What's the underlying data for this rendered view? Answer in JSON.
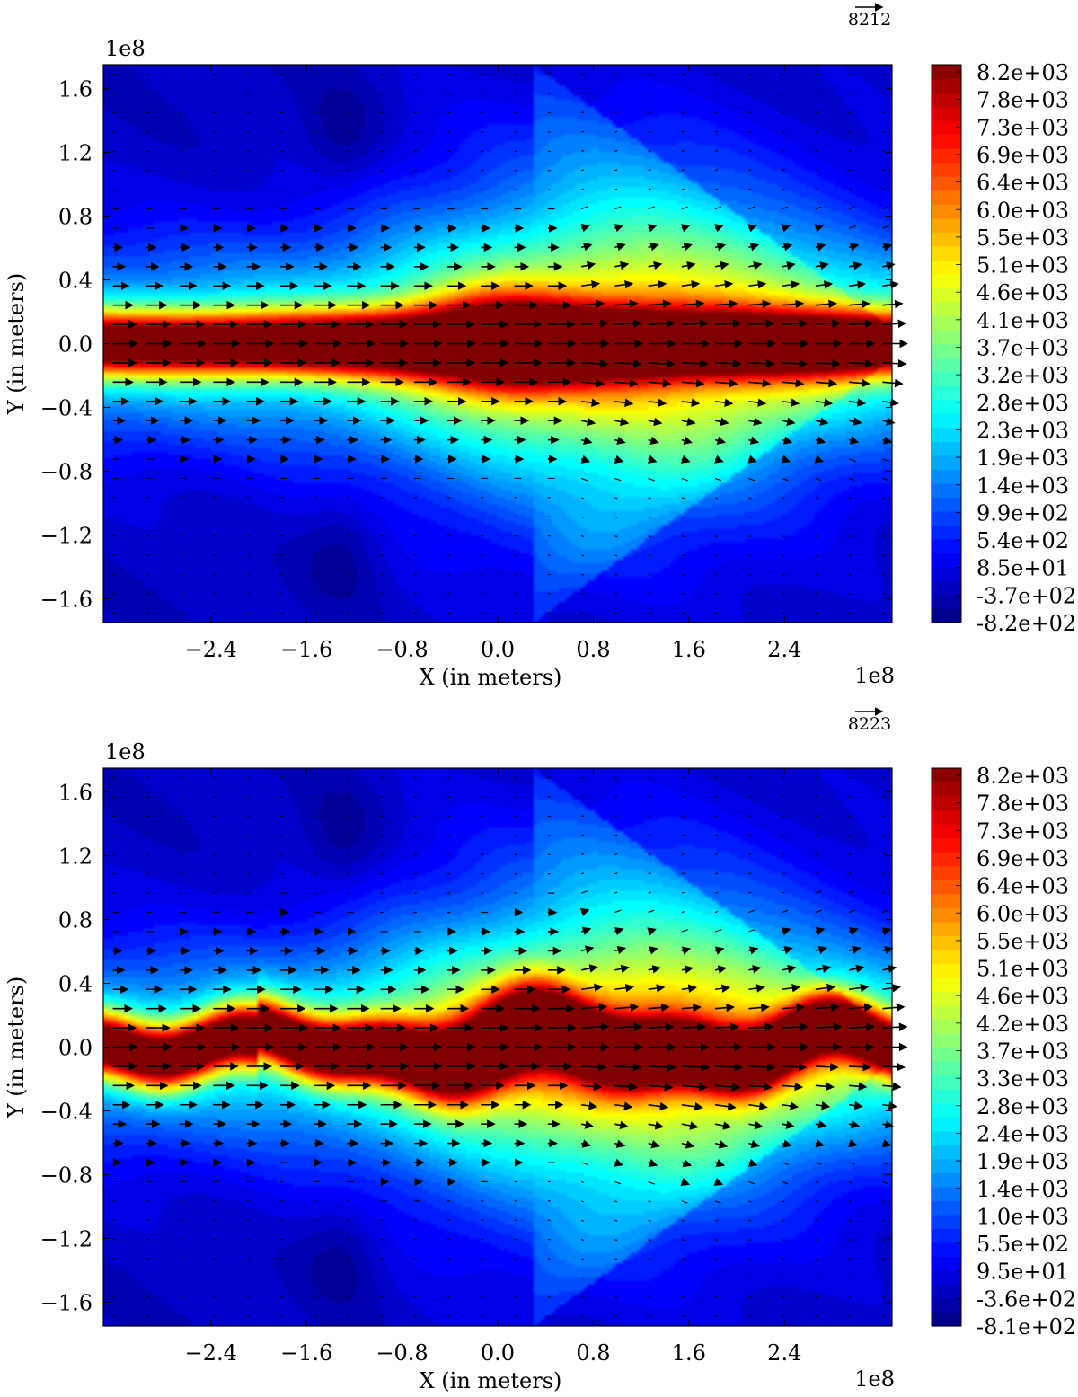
{
  "chart_data": [
    {
      "type": "heatmap",
      "subtype": "filled-contour-with-quiver",
      "xlabel": "X (in meters)",
      "ylabel": "Y (in meters)",
      "x_scale_label": "1e8",
      "y_scale_label": "1e8",
      "xlim": [
        -3.3,
        3.3
      ],
      "ylim": [
        -1.75,
        1.75
      ],
      "xticks": [
        -2.4,
        -1.6,
        -0.8,
        0.0,
        0.8,
        1.6,
        2.4
      ],
      "xtick_labels": [
        "−2.4",
        "−1.6",
        "−0.8",
        "0.0",
        "0.8",
        "1.6",
        "2.4"
      ],
      "yticks": [
        1.6,
        1.2,
        0.8,
        0.4,
        0.0,
        -0.4,
        -0.8,
        -1.2,
        -1.6
      ],
      "ytick_labels": [
        "1.6",
        "1.2",
        "0.8",
        "0.4",
        "0.0",
        "−0.4",
        "−0.8",
        "−1.2",
        "−1.6"
      ],
      "quiver_key_label": "8212",
      "colormap": "jet",
      "colorbar_labels": [
        "8.2e+03",
        "7.8e+03",
        "7.3e+03",
        "6.9e+03",
        "6.4e+03",
        "6.0e+03",
        "5.5e+03",
        "5.1e+03",
        "4.6e+03",
        "4.1e+03",
        "3.7e+03",
        "3.2e+03",
        "2.8e+03",
        "2.3e+03",
        "1.9e+03",
        "1.4e+03",
        "9.9e+02",
        "5.4e+02",
        "8.5e+01",
        "-3.7e+02",
        "-8.2e+02"
      ],
      "color_range": [
        -820,
        8200
      ],
      "current_sheet": "flat"
    },
    {
      "type": "heatmap",
      "subtype": "filled-contour-with-quiver",
      "xlabel": "X (in meters)",
      "ylabel": "Y (in meters)",
      "x_scale_label": "1e8",
      "y_scale_label": "1e8",
      "xlim": [
        -3.3,
        3.3
      ],
      "ylim": [
        -1.75,
        1.75
      ],
      "xticks": [
        -2.4,
        -1.6,
        -0.8,
        0.0,
        0.8,
        1.6,
        2.4
      ],
      "xtick_labels": [
        "−2.4",
        "−1.6",
        "−0.8",
        "0.0",
        "0.8",
        "1.6",
        "2.4"
      ],
      "yticks": [
        1.6,
        1.2,
        0.8,
        0.4,
        0.0,
        -0.4,
        -0.8,
        -1.2,
        -1.6
      ],
      "ytick_labels": [
        "1.6",
        "1.2",
        "0.8",
        "0.4",
        "0.0",
        "−0.4",
        "−0.8",
        "−1.2",
        "−1.6"
      ],
      "quiver_key_label": "8223",
      "colormap": "jet",
      "colorbar_labels": [
        "8.2e+03",
        "7.8e+03",
        "7.3e+03",
        "6.9e+03",
        "6.4e+03",
        "6.0e+03",
        "5.5e+03",
        "5.1e+03",
        "4.6e+03",
        "4.2e+03",
        "3.7e+03",
        "3.3e+03",
        "2.8e+03",
        "2.4e+03",
        "1.9e+03",
        "1.4e+03",
        "1.0e+03",
        "5.5e+02",
        "9.5e+01",
        "-3.6e+02",
        "-8.1e+02"
      ],
      "color_range": [
        -810,
        8200
      ],
      "current_sheet": "wavy"
    }
  ]
}
